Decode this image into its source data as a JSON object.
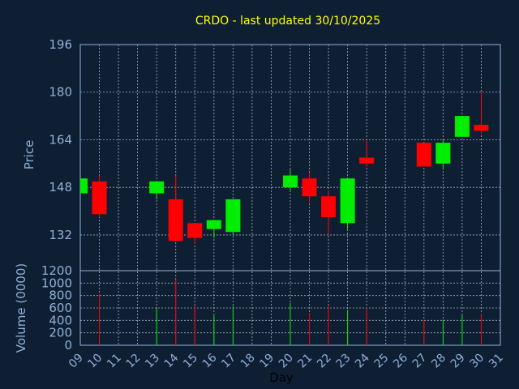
{
  "chart_data": [
    {
      "type": "candlestick",
      "title": "CRDO - last updated 30/10/2025",
      "ylabel": "Price",
      "ylim": [
        120,
        196
      ],
      "yticks": [
        196,
        180,
        164,
        148,
        132
      ],
      "categories": [
        "09",
        "10",
        "11",
        "12",
        "13",
        "14",
        "15",
        "16",
        "17",
        "18",
        "19",
        "20",
        "21",
        "22",
        "23",
        "24",
        "25",
        "26",
        "27",
        "28",
        "29",
        "30",
        "31"
      ],
      "candles": [
        {
          "day": "09",
          "open": 146,
          "close": 151,
          "high": 151,
          "low": 146
        },
        {
          "day": "10",
          "open": 150,
          "close": 139,
          "high": 152,
          "low": 138
        },
        {
          "day": "13",
          "open": 146,
          "close": 150,
          "high": 150,
          "low": 144
        },
        {
          "day": "14",
          "open": 144,
          "close": 130,
          "high": 152,
          "low": 130
        },
        {
          "day": "15",
          "open": 136,
          "close": 131,
          "high": 136,
          "low": 129
        },
        {
          "day": "16",
          "open": 134,
          "close": 137,
          "high": 137,
          "low": 131
        },
        {
          "day": "17",
          "open": 133,
          "close": 144,
          "high": 144,
          "low": 132
        },
        {
          "day": "20",
          "open": 148,
          "close": 152,
          "high": 154,
          "low": 147
        },
        {
          "day": "21",
          "open": 151,
          "close": 145,
          "high": 153,
          "low": 143
        },
        {
          "day": "22",
          "open": 145,
          "close": 138,
          "high": 147,
          "low": 132
        },
        {
          "day": "23",
          "open": 136,
          "close": 151,
          "high": 151,
          "low": 134
        },
        {
          "day": "24",
          "open": 158,
          "close": 156,
          "high": 164,
          "low": 155
        },
        {
          "day": "27",
          "open": 163,
          "close": 155,
          "high": 163,
          "low": 155
        },
        {
          "day": "28",
          "open": 156,
          "close": 163,
          "high": 164,
          "low": 154
        },
        {
          "day": "29",
          "open": 165,
          "close": 172,
          "high": 172,
          "low": 165
        },
        {
          "day": "30",
          "open": 169,
          "close": 167,
          "high": 180,
          "low": 166
        }
      ],
      "colors": {
        "up": "#00ee00",
        "down": "#ff0000",
        "background": "#0f1f33",
        "text": "#ffff00",
        "axis": "#8fb0d8",
        "grid": "#c8d4e4"
      },
      "grid": true
    },
    {
      "type": "bar",
      "ylabel": "Volume (0000)",
      "xlabel": "Day",
      "ylim": [
        0,
        1200
      ],
      "yticks": [
        1200,
        1000,
        800,
        600,
        400,
        200,
        0
      ],
      "categories": [
        "09",
        "10",
        "11",
        "12",
        "13",
        "14",
        "15",
        "16",
        "17",
        "18",
        "19",
        "20",
        "21",
        "22",
        "23",
        "24",
        "25",
        "26",
        "27",
        "28",
        "29",
        "30",
        "31"
      ],
      "values": [
        {
          "day": "10",
          "value": 820,
          "direction": "down"
        },
        {
          "day": "13",
          "value": 600,
          "direction": "up"
        },
        {
          "day": "14",
          "value": 1060,
          "direction": "down"
        },
        {
          "day": "15",
          "value": 640,
          "direction": "down"
        },
        {
          "day": "16",
          "value": 480,
          "direction": "up"
        },
        {
          "day": "17",
          "value": 630,
          "direction": "up"
        },
        {
          "day": "20",
          "value": 680,
          "direction": "up"
        },
        {
          "day": "21",
          "value": 520,
          "direction": "down"
        },
        {
          "day": "22",
          "value": 640,
          "direction": "down"
        },
        {
          "day": "23",
          "value": 570,
          "direction": "up"
        },
        {
          "day": "24",
          "value": 610,
          "direction": "down"
        },
        {
          "day": "27",
          "value": 410,
          "direction": "down"
        },
        {
          "day": "28",
          "value": 410,
          "direction": "up"
        },
        {
          "day": "29",
          "value": 490,
          "direction": "up"
        },
        {
          "day": "30",
          "value": 510,
          "direction": "down"
        }
      ],
      "grid": true
    }
  ]
}
